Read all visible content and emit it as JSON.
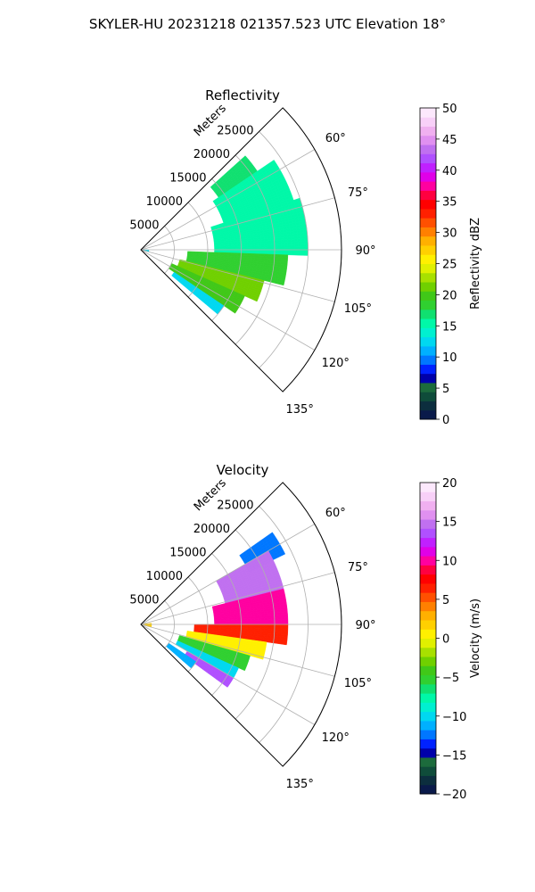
{
  "suptitle": "SKYLER-HU  20231218  021357.523 UTC Elevation 18°",
  "chart_data": [
    {
      "type": "ppi",
      "title": "Reflectivity",
      "range_label": "Meters",
      "range_ticks": [
        5000,
        10000,
        15000,
        20000,
        25000
      ],
      "range_tick_labels": [
        "5000",
        "10000",
        "15000",
        "20000",
        "25000"
      ],
      "rmax": 30000,
      "azimuth_range": [
        45,
        135
      ],
      "azimuth_ticks": [
        60,
        75,
        90,
        105,
        120,
        135
      ],
      "azimuth_tick_labels": [
        "60°",
        "75°",
        "90°",
        "105°",
        "120°",
        "135°"
      ],
      "grid": true,
      "colorbar": {
        "label": "Reflectivity dBZ",
        "vmin": 0,
        "vmax": 50,
        "ticks": [
          0,
          5,
          10,
          15,
          20,
          25,
          30,
          35,
          40,
          45,
          50
        ],
        "tick_labels": [
          "0",
          "5",
          "10",
          "15",
          "20",
          "25",
          "30",
          "35",
          "40",
          "45",
          "50"
        ],
        "colors": [
          "#0a1a4a",
          "#0c2e3e",
          "#0f4c3a",
          "#1c6b3c",
          "#0000aa",
          "#0022ff",
          "#0077ff",
          "#00b0ff",
          "#00d8f0",
          "#00f0d0",
          "#00f8a8",
          "#10e070",
          "#30d030",
          "#40c818",
          "#70d000",
          "#a8e000",
          "#e0f000",
          "#fff000",
          "#ffd000",
          "#ffb000",
          "#ff8000",
          "#ff5000",
          "#ff2000",
          "#ff0000",
          "#ff0040",
          "#ff00a0",
          "#e000e8",
          "#c020ff",
          "#b050ff",
          "#c070f0",
          "#e090f0",
          "#f0b0f0",
          "#f8d0f8",
          "#fce8fc"
        ]
      },
      "data": [
        {
          "az_min": 48,
          "az_max": 56,
          "r_min": 14000,
          "r_max": 21000,
          "value": 17
        },
        {
          "az_min": 56,
          "az_max": 72,
          "r_min": 13000,
          "r_max": 24000,
          "value": 16
        },
        {
          "az_min": 72,
          "az_max": 92,
          "r_min": 11000,
          "r_max": 25000,
          "value": 15
        },
        {
          "az_min": 92,
          "az_max": 104,
          "r_min": 7000,
          "r_max": 22000,
          "value": 19
        },
        {
          "az_min": 104,
          "az_max": 114,
          "r_min": 6000,
          "r_max": 19000,
          "value": 21
        },
        {
          "az_min": 114,
          "az_max": 124,
          "r_min": 5000,
          "r_max": 17000,
          "value": 20
        },
        {
          "az_min": 124,
          "az_max": 130,
          "r_min": 6000,
          "r_max": 15000,
          "value": 13
        },
        {
          "az_min": 92,
          "az_max": 104,
          "r_min": 0,
          "r_max": 1200,
          "value": 12
        }
      ]
    },
    {
      "type": "ppi",
      "title": "Velocity",
      "range_label": "Meters",
      "range_ticks": [
        5000,
        10000,
        15000,
        20000,
        25000
      ],
      "range_tick_labels": [
        "5000",
        "10000",
        "15000",
        "20000",
        "25000"
      ],
      "rmax": 30000,
      "azimuth_range": [
        45,
        135
      ],
      "azimuth_ticks": [
        60,
        75,
        90,
        105,
        120,
        135
      ],
      "azimuth_tick_labels": [
        "60°",
        "75°",
        "90°",
        "105°",
        "120°",
        "135°"
      ],
      "grid": true,
      "colorbar": {
        "label": "Velocity (m/s)",
        "vmin": -20,
        "vmax": 20,
        "ticks": [
          -20,
          -15,
          -10,
          -5,
          0,
          5,
          10,
          15,
          20
        ],
        "tick_labels": [
          "−20",
          "−15",
          "−10",
          "−5",
          "0",
          "5",
          "10",
          "15",
          "20"
        ],
        "colors": [
          "#0a1a4a",
          "#0c2e3e",
          "#0f4c3a",
          "#1c6b3c",
          "#0000aa",
          "#0022ff",
          "#0077ff",
          "#00b0ff",
          "#00d8f0",
          "#00f0d0",
          "#00f8a8",
          "#10e070",
          "#30d030",
          "#40c818",
          "#70d000",
          "#a8e000",
          "#e0f000",
          "#fff000",
          "#ffd000",
          "#ffb000",
          "#ff8000",
          "#ff5000",
          "#ff2000",
          "#ff0000",
          "#ff0040",
          "#ff00a0",
          "#e000e8",
          "#c020ff",
          "#b050ff",
          "#c070f0",
          "#e090f0",
          "#f0b0f0",
          "#f8d0f8",
          "#fce8fc"
        ]
      },
      "data": [
        {
          "az_min": 55,
          "az_max": 64,
          "r_min": 18000,
          "r_max": 24000,
          "value": -12
        },
        {
          "az_min": 60,
          "az_max": 76,
          "r_min": 13000,
          "r_max": 22000,
          "value": 15
        },
        {
          "az_min": 76,
          "az_max": 90,
          "r_min": 11000,
          "r_max": 22000,
          "value": 10
        },
        {
          "az_min": 90,
          "az_max": 98,
          "r_min": 8000,
          "r_max": 22000,
          "value": 6
        },
        {
          "az_min": 98,
          "az_max": 106,
          "r_min": 7000,
          "r_max": 19000,
          "value": 0
        },
        {
          "az_min": 106,
          "az_max": 114,
          "r_min": 6000,
          "r_max": 17000,
          "value": -5
        },
        {
          "az_min": 114,
          "az_max": 120,
          "r_min": 6000,
          "r_max": 16000,
          "value": -10
        },
        {
          "az_min": 120,
          "az_max": 126,
          "r_min": 8000,
          "r_max": 16000,
          "value": 14
        },
        {
          "az_min": 124,
          "az_max": 131,
          "r_min": 5000,
          "r_max": 10000,
          "value": -11
        },
        {
          "az_min": 84,
          "az_max": 104,
          "r_min": 0,
          "r_max": 1600,
          "value": 2
        }
      ]
    }
  ]
}
